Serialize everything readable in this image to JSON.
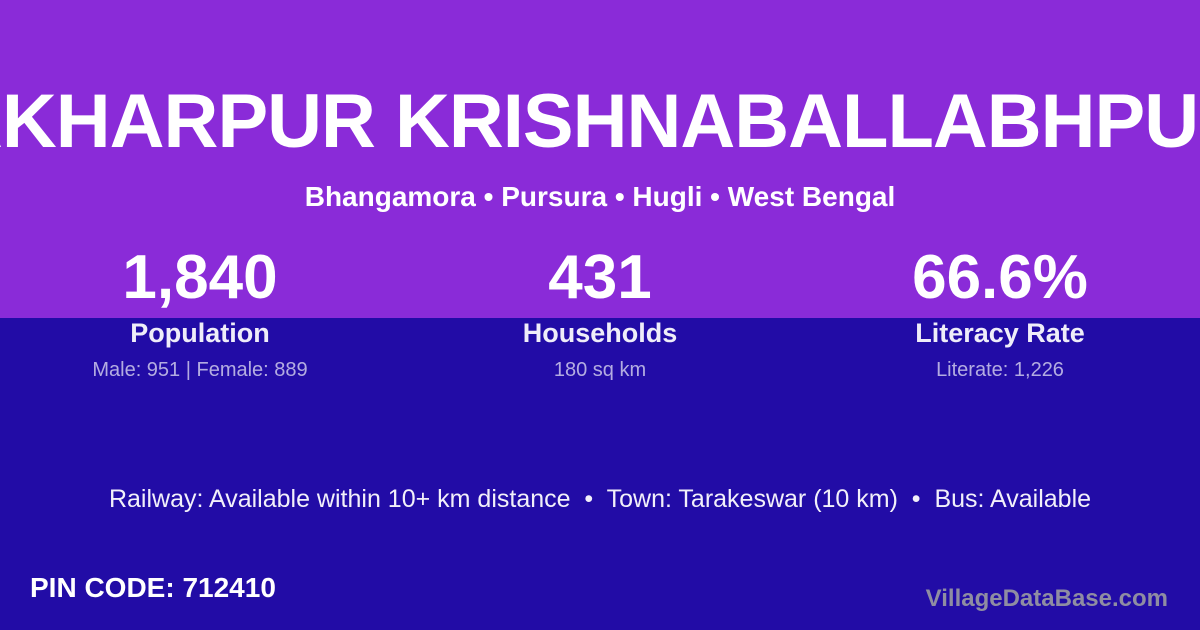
{
  "colors": {
    "purple": "#8A2BD8",
    "indigo": "#220CA6",
    "watermark_gray": "#8F8DA2"
  },
  "hero": {
    "village_name": "AKHARPUR KRISHNABALLABHPUR",
    "location_line": "Bhangamora • Pursura • Hugli • West Bengal"
  },
  "stats": [
    {
      "value": "1,840",
      "label": "Population",
      "detail": "Male: 951 | Female: 889"
    },
    {
      "value": "431",
      "label": "Households",
      "detail": "180 sq km"
    },
    {
      "value": "66.6%",
      "label": "Literacy Rate",
      "detail": "Literate: 1,226"
    }
  ],
  "amenities_line": "Railway: Available within 10+ km distance  •  Town: Tarakeswar (10 km)  •  Bus: Available",
  "footer": {
    "pin_code": "PIN CODE: 712410",
    "watermark": "VillageDataBase.com"
  }
}
